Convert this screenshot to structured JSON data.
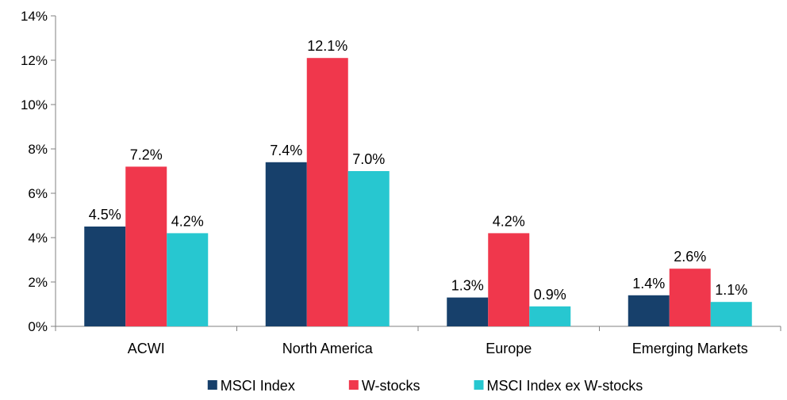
{
  "chart_data": {
    "type": "bar",
    "title": "",
    "xlabel": "",
    "ylabel": "",
    "categories": [
      "ACWI",
      "North America",
      "Europe",
      "Emerging Markets"
    ],
    "series": [
      {
        "name": "MSCI Index",
        "color": "#17406b",
        "values": [
          4.5,
          7.4,
          1.3,
          1.4
        ],
        "labels": [
          "4.5%",
          "7.4%",
          "1.3%",
          "1.4%"
        ]
      },
      {
        "name": "W-stocks",
        "color": "#f0374c",
        "values": [
          7.2,
          12.1,
          4.2,
          2.6
        ],
        "labels": [
          "7.2%",
          "12.1%",
          "4.2%",
          "2.6%"
        ]
      },
      {
        "name": "MSCI Index ex W-stocks",
        "color": "#27c7d0",
        "values": [
          4.2,
          7.0,
          0.9,
          1.1
        ],
        "labels": [
          "4.2%",
          "7.0%",
          "0.9%",
          "1.1%"
        ]
      }
    ],
    "ylim": [
      0,
      14
    ],
    "yticks": [
      0,
      2,
      4,
      6,
      8,
      10,
      12,
      14
    ],
    "ytick_labels": [
      "0%",
      "2%",
      "4%",
      "6%",
      "8%",
      "10%",
      "12%",
      "14%"
    ],
    "grid": false,
    "legend_position": "bottom"
  }
}
